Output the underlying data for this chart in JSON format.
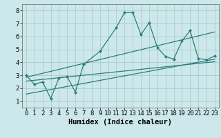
{
  "title": "",
  "xlabel": "Humidex (Indice chaleur)",
  "bg_color": "#cce8ea",
  "grid_color": "#aacccc",
  "line_color": "#2d7d7a",
  "xlim": [
    -0.5,
    23.5
  ],
  "ylim": [
    0.5,
    8.5
  ],
  "xticks": [
    0,
    1,
    2,
    3,
    4,
    5,
    6,
    7,
    8,
    9,
    10,
    11,
    12,
    13,
    14,
    15,
    16,
    17,
    18,
    19,
    20,
    21,
    22,
    23
  ],
  "yticks": [
    1,
    2,
    3,
    4,
    5,
    6,
    7,
    8
  ],
  "scatter_x": [
    0,
    1,
    2,
    3,
    4,
    5,
    6,
    7,
    9,
    11,
    12,
    13,
    14,
    15,
    16,
    17,
    18,
    19,
    20,
    21,
    22,
    23
  ],
  "scatter_y": [
    3.0,
    2.3,
    2.5,
    1.2,
    2.8,
    2.9,
    1.7,
    3.85,
    4.85,
    6.7,
    7.85,
    7.85,
    6.15,
    7.05,
    5.15,
    4.45,
    4.25,
    5.65,
    6.45,
    4.3,
    4.2,
    4.5
  ],
  "line1_x": [
    0,
    23
  ],
  "line1_y": [
    2.55,
    4.05
  ],
  "line2_x": [
    0,
    23
  ],
  "line2_y": [
    2.85,
    6.35
  ],
  "line3_x": [
    0,
    23
  ],
  "line3_y": [
    1.55,
    4.25
  ],
  "tick_fontsize": 6.5,
  "xlabel_fontsize": 7.5
}
